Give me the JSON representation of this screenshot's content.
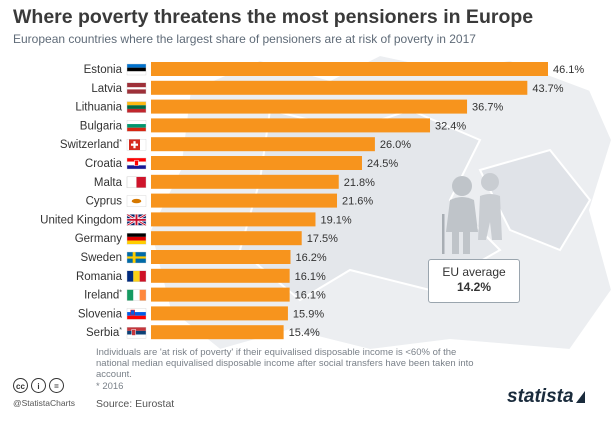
{
  "title": "Where poverty threatens the most pensioners in Europe",
  "subtitle": "European countries where the largest share of pensioners are at risk of poverty in 2017",
  "colors": {
    "bar": "#f7941d",
    "map": "#e9ebee",
    "text": "#333333"
  },
  "chart_data": {
    "type": "bar",
    "orientation": "horizontal",
    "title": "Where poverty threatens the most pensioners in Europe",
    "categories": [
      "Estonia",
      "Latvia",
      "Lithuania",
      "Bulgaria",
      "Switzerland",
      "Croatia",
      "Malta",
      "Cyprus",
      "United Kingdom",
      "Germany",
      "Sweden",
      "Romania",
      "Ireland",
      "Slovenia",
      "Serbia"
    ],
    "footnote_marks": [
      "",
      "",
      "",
      "",
      "*",
      "",
      "",
      "",
      "",
      "",
      "",
      "",
      "*",
      "",
      "*"
    ],
    "values": [
      46.1,
      43.7,
      36.7,
      32.4,
      26.0,
      24.5,
      21.8,
      21.6,
      19.1,
      17.5,
      16.2,
      16.1,
      16.1,
      15.9,
      15.4
    ],
    "value_labels": [
      "46.1%",
      "43.7%",
      "36.7%",
      "32.4%",
      "26.0%",
      "24.5%",
      "21.8%",
      "21.6%",
      "19.1%",
      "17.5%",
      "16.2%",
      "16.1%",
      "16.1%",
      "15.9%",
      "15.4%"
    ],
    "flags": [
      "flag-estonia-icon",
      "flag-latvia-icon",
      "flag-lithuania-icon",
      "flag-bulgaria-icon",
      "flag-switzerland-icon",
      "flag-croatia-icon",
      "flag-malta-icon",
      "flag-cyprus-icon",
      "flag-united-kingdom-icon",
      "flag-germany-icon",
      "flag-sweden-icon",
      "flag-romania-icon",
      "flag-ireland-icon",
      "flag-slovenia-icon",
      "flag-serbia-icon"
    ],
    "xlim": [
      0,
      46.1
    ],
    "unit": "%"
  },
  "eu_average": {
    "label": "EU average",
    "value": "14.2%"
  },
  "footnote": "Individuals are 'at risk of poverty' if their equivalised disposable income is <60% of the national median equivalised disposable income after social transfers have been taken into account.",
  "footnote_star": "* 2016",
  "source": "Source: Eurostat",
  "handle": "@StatistaCharts",
  "license_icons": [
    "cc",
    "i",
    "="
  ],
  "logo": "statista"
}
